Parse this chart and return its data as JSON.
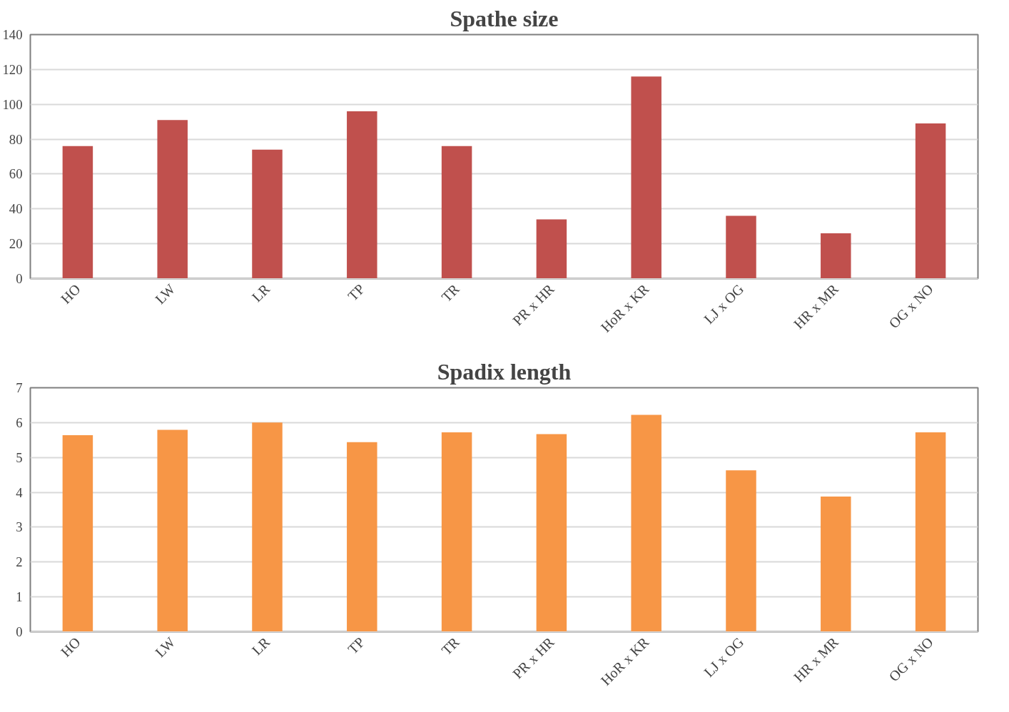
{
  "chart_data": [
    {
      "type": "bar",
      "title": "Spathe size",
      "categories": [
        "HO",
        "LW",
        "LR",
        "TP",
        "TR",
        "PR x HR",
        "HoR x KR",
        "LJ x OG",
        "HR x MR",
        "OG x NO"
      ],
      "values": [
        76,
        91,
        74,
        96,
        76,
        34,
        116,
        36,
        26,
        89
      ],
      "color": "#c0504d",
      "ylim": [
        0,
        140
      ],
      "yticks": [
        0,
        20,
        40,
        60,
        80,
        100,
        120,
        140
      ],
      "grid": "y"
    },
    {
      "type": "bar",
      "title": "Spadix length",
      "categories": [
        "HO",
        "LW",
        "LR",
        "TP",
        "TR",
        "PR x HR",
        "HoR x KR",
        "LJ x OG",
        "HR x MR",
        "OG x NO"
      ],
      "values": [
        5.64,
        5.79,
        6.0,
        5.44,
        5.72,
        5.67,
        6.22,
        4.63,
        3.88,
        5.72
      ],
      "color": "#f79646",
      "ylim": [
        0,
        7
      ],
      "yticks": [
        0,
        1,
        2,
        3,
        4,
        5,
        6,
        7
      ],
      "grid": "y"
    }
  ]
}
